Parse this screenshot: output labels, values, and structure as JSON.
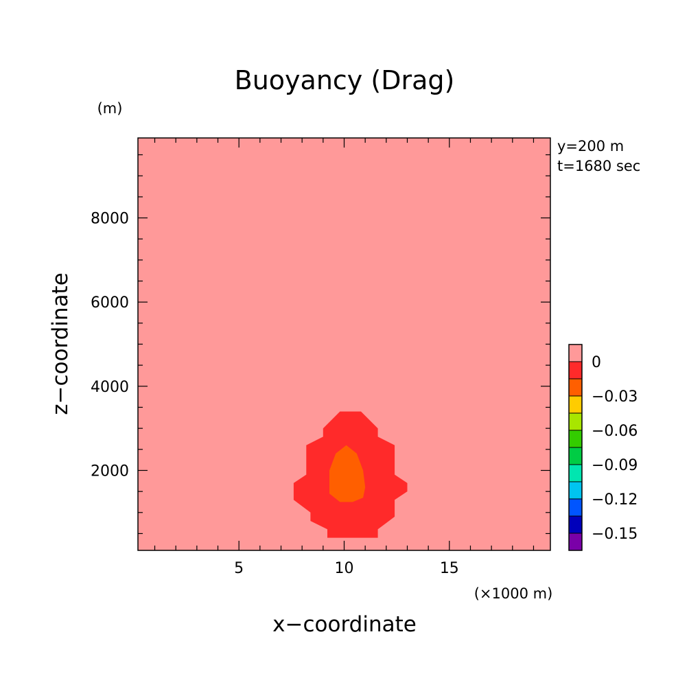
{
  "chart_data": {
    "type": "heatmap",
    "title": "Buoyancy (Drag)",
    "xlabel": "x−coordinate",
    "ylabel": "z−coordinate",
    "x_unit": "(×1000 m)",
    "y_unit": "(m)",
    "info": [
      "y=200 m",
      "t=1680 sec"
    ],
    "xlim": [
      0.2,
      19.8
    ],
    "ylim": [
      100,
      9900
    ],
    "x_major_ticks": [
      5,
      10,
      15
    ],
    "x_tick_labels": [
      "5",
      "10",
      "15"
    ],
    "y_major_ticks": [
      2000,
      4000,
      6000,
      8000
    ],
    "y_tick_labels": [
      "2000",
      "4000",
      "6000",
      "8000"
    ],
    "background_color": "#ff9999",
    "contours": [
      {
        "level": "0 to -0.015",
        "color": "#ff2a2a",
        "x": [
          10.2,
          10.8,
          11.6,
          11.6,
          12.4,
          12.4,
          13.0,
          13.0,
          12.4,
          12.4,
          11.6,
          11.6,
          9.2,
          9.2,
          8.4,
          8.4,
          7.6,
          7.6,
          8.2,
          8.2,
          9.0,
          9.0,
          9.8
        ],
        "y": [
          3400,
          3400,
          3000,
          2800,
          2600,
          1900,
          1700,
          1500,
          1300,
          900,
          600,
          400,
          400,
          600,
          800,
          1000,
          1300,
          1700,
          1900,
          2600,
          2800,
          3000,
          3400
        ]
      },
      {
        "level": "-0.015 to -0.03",
        "color": "#ff5f00",
        "x": [
          10.1,
          10.6,
          10.9,
          11.0,
          10.9,
          10.4,
          9.8,
          9.3,
          9.3,
          9.6
        ],
        "y": [
          2600,
          2400,
          2000,
          1600,
          1350,
          1250,
          1250,
          1450,
          2000,
          2400
        ]
      }
    ],
    "colorbar": {
      "labels": [
        "0",
        "−0.03",
        "−0.06",
        "−0.09",
        "−0.12",
        "−0.15"
      ],
      "colors": [
        "#ff9999",
        "#ff2a2a",
        "#ff5f00",
        "#ffcc00",
        "#a8e600",
        "#33cc00",
        "#00cc44",
        "#00e6b0",
        "#00c4f0",
        "#0055ff",
        "#0000bb",
        "#7a00a8"
      ]
    }
  }
}
